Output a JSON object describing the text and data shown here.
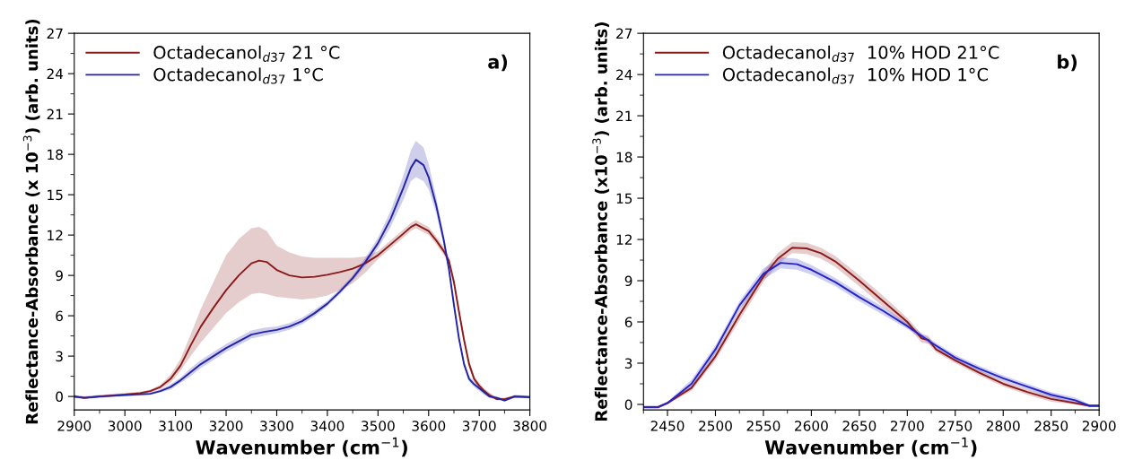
{
  "chart_data": [
    {
      "type": "line",
      "xlabel": "Wavenumber (cm$^{−1}$)",
      "ylabel": "Reflectance-Absorbance (x 10$^{−3}$) (arb. units)",
      "annotations": [
        "a)"
      ],
      "legend": "top left",
      "grid": false,
      "xlim": [
        2900,
        3800
      ],
      "ylim": [
        -1,
        27
      ],
      "xticks": [
        2900,
        {
          "value": 2950,
          "label": null
        },
        3000,
        {
          "value": 3050,
          "label": null
        },
        3100,
        {
          "value": 3150,
          "label": null
        },
        3200,
        {
          "value": 3250,
          "label": null
        },
        3300,
        {
          "value": 3350,
          "label": null
        },
        3400,
        {
          "value": 3450,
          "label": null
        },
        3500,
        {
          "value": 3550,
          "label": null
        },
        3600,
        {
          "value": 3650,
          "label": null
        },
        3700,
        {
          "value": 3750,
          "label": null
        },
        3800
      ],
      "yticks": [
        0,
        {
          "value": 1.5,
          "label": null
        },
        3,
        {
          "value": 4.5,
          "label": null
        },
        6,
        {
          "value": 7.5,
          "label": null
        },
        9,
        {
          "value": 10.5,
          "label": null
        },
        12,
        {
          "value": 13.5,
          "label": null
        },
        15,
        {
          "value": 16.5,
          "label": null
        },
        18,
        {
          "value": 19.5,
          "label": null
        },
        21,
        {
          "value": 22.5,
          "label": null
        },
        24,
        {
          "value": 25.5,
          "label": null
        },
        27
      ],
      "series": [
        {
          "name": "Octadecanol$_{d37}$ 21 °C",
          "color": "#8b1a1a",
          "x": [
            2900,
            2920,
            2950,
            3000,
            3030,
            3050,
            3070,
            3090,
            3110,
            3130,
            3150,
            3175,
            3200,
            3225,
            3250,
            3265,
            3280,
            3300,
            3325,
            3350,
            3375,
            3400,
            3425,
            3450,
            3475,
            3500,
            3525,
            3550,
            3565,
            3575,
            3590,
            3600,
            3615,
            3630,
            3640,
            3650,
            3660,
            3670,
            3680,
            3690,
            3700,
            3710,
            3720,
            3735,
            3750,
            3770,
            3800
          ],
          "values": [
            0,
            -0.1,
            0,
            0.15,
            0.25,
            0.4,
            0.7,
            1.3,
            2.3,
            3.8,
            5.2,
            6.6,
            7.9,
            9.0,
            9.9,
            10.1,
            10.0,
            9.4,
            9.0,
            8.85,
            8.9,
            9.05,
            9.25,
            9.5,
            9.9,
            10.5,
            11.3,
            12.1,
            12.6,
            12.8,
            12.5,
            12.3,
            11.6,
            10.8,
            10.1,
            8.5,
            6.3,
            4.2,
            2.4,
            1.3,
            0.8,
            0.4,
            0.1,
            -0.2,
            -0.2,
            0,
            -0.05
          ],
          "lower": [
            -0.1,
            -0.2,
            -0.1,
            0.05,
            0.15,
            0.3,
            0.55,
            1.0,
            1.9,
            3.0,
            4.0,
            5.1,
            6.2,
            7.0,
            7.6,
            7.7,
            7.6,
            7.4,
            7.3,
            7.2,
            7.3,
            7.5,
            7.9,
            8.4,
            9.2,
            10.2,
            11.0,
            11.8,
            12.3,
            12.5,
            12.2,
            12.0,
            11.3,
            10.5,
            9.8,
            8.2,
            6.0,
            3.9,
            2.1,
            1.1,
            0.6,
            0.2,
            -0.1,
            -0.3,
            -0.3,
            -0.1,
            -0.15
          ],
          "upper": [
            0.1,
            0,
            0.1,
            0.25,
            0.35,
            0.5,
            0.85,
            1.6,
            2.8,
            4.6,
            6.5,
            8.5,
            10.5,
            11.7,
            12.5,
            12.6,
            12.3,
            11.2,
            10.7,
            10.4,
            10.3,
            10.3,
            10.3,
            10.3,
            10.4,
            10.8,
            11.6,
            12.4,
            12.9,
            13.1,
            12.8,
            12.6,
            11.9,
            11.1,
            10.4,
            8.8,
            6.6,
            4.5,
            2.7,
            1.5,
            1.0,
            0.6,
            0.3,
            -0.1,
            -0.1,
            0.1,
            0.05
          ]
        },
        {
          "name": "Octadecanol$_{d37}$ 1°C",
          "color": "#2323a8",
          "x": [
            2900,
            2920,
            2950,
            3000,
            3050,
            3070,
            3090,
            3110,
            3130,
            3150,
            3175,
            3200,
            3225,
            3250,
            3275,
            3300,
            3325,
            3350,
            3375,
            3400,
            3425,
            3450,
            3475,
            3500,
            3525,
            3550,
            3565,
            3575,
            3590,
            3600,
            3615,
            3630,
            3640,
            3650,
            3660,
            3670,
            3680,
            3690,
            3700,
            3710,
            3720,
            3735,
            3750,
            3770,
            3800
          ],
          "values": [
            0,
            -0.1,
            0,
            0.1,
            0.2,
            0.4,
            0.7,
            1.2,
            1.8,
            2.4,
            3.0,
            3.6,
            4.1,
            4.6,
            4.8,
            4.95,
            5.2,
            5.6,
            6.2,
            6.9,
            7.8,
            8.8,
            10.0,
            11.4,
            13.2,
            15.5,
            17.0,
            17.6,
            17.2,
            16.3,
            14.2,
            11.6,
            9.5,
            6.8,
            4.3,
            2.4,
            1.3,
            0.9,
            0.6,
            0.3,
            0.0,
            -0.1,
            -0.3,
            0,
            -0.05
          ],
          "lower": [
            -0.1,
            -0.2,
            -0.1,
            0,
            0.1,
            0.3,
            0.5,
            1.0,
            1.5,
            2.1,
            2.7,
            3.3,
            3.8,
            4.3,
            4.5,
            4.7,
            4.95,
            5.35,
            5.95,
            6.7,
            7.6,
            8.6,
            9.7,
            11.0,
            12.6,
            14.6,
            16.0,
            16.3,
            16.0,
            15.4,
            13.6,
            11.2,
            9.2,
            6.6,
            4.1,
            2.2,
            1.1,
            0.7,
            0.4,
            0.1,
            -0.1,
            -0.2,
            -0.4,
            -0.1,
            -0.15
          ],
          "upper": [
            0.1,
            0,
            0.1,
            0.2,
            0.3,
            0.5,
            0.9,
            1.4,
            2.1,
            2.7,
            3.3,
            3.9,
            4.4,
            4.9,
            5.1,
            5.2,
            5.45,
            5.85,
            6.45,
            7.1,
            8.0,
            9.0,
            10.3,
            11.8,
            13.8,
            16.4,
            18.3,
            19.0,
            18.5,
            17.3,
            14.8,
            12.0,
            9.8,
            7.0,
            4.5,
            2.6,
            1.5,
            1.1,
            0.8,
            0.5,
            0.1,
            0,
            -0.2,
            0.1,
            0.05
          ]
        }
      ]
    },
    {
      "type": "line",
      "xlabel": "Wavenumber (cm$^{−1}$)",
      "ylabel": "Reflectance-Absorbance (x10$^{−3}$) (arb. units)",
      "annotations": [
        "b)"
      ],
      "legend": "top left",
      "grid": false,
      "xlim": [
        2425,
        2900
      ],
      "ylim": [
        -0.4,
        27
      ],
      "xticks": [
        {
          "value": 2425,
          "label": null
        },
        2450,
        {
          "value": 2475,
          "label": null
        },
        2500,
        {
          "value": 2525,
          "label": null
        },
        2550,
        {
          "value": 2575,
          "label": null
        },
        2600,
        {
          "value": 2625,
          "label": null
        },
        2650,
        {
          "value": 2675,
          "label": null
        },
        2700,
        {
          "value": 2725,
          "label": null
        },
        2750,
        {
          "value": 2775,
          "label": null
        },
        2800,
        {
          "value": 2825,
          "label": null
        },
        2850,
        {
          "value": 2875,
          "label": null
        },
        2900
      ],
      "yticks": [
        0,
        {
          "value": 1.5,
          "label": null
        },
        3,
        {
          "value": 4.5,
          "label": null
        },
        6,
        {
          "value": 7.5,
          "label": null
        },
        9,
        {
          "value": 10.5,
          "label": null
        },
        12,
        {
          "value": 13.5,
          "label": null
        },
        15,
        {
          "value": 16.5,
          "label": null
        },
        18,
        {
          "value": 19.5,
          "label": null
        },
        21,
        {
          "value": 22.5,
          "label": null
        },
        24,
        {
          "value": 25.5,
          "label": null
        },
        27
      ],
      "series": [
        {
          "name": "Octadecanol$_{d37}$  10% HOD 21°C",
          "color": "#8b1a1a",
          "x": [
            2425,
            2440,
            2450,
            2475,
            2500,
            2525,
            2550,
            2565,
            2580,
            2595,
            2610,
            2625,
            2650,
            2675,
            2700,
            2715,
            2722,
            2730,
            2750,
            2775,
            2800,
            2825,
            2850,
            2875,
            2890,
            2900
          ],
          "values": [
            -0.2,
            -0.2,
            0.1,
            1.2,
            3.5,
            6.5,
            9.3,
            10.6,
            11.4,
            11.35,
            11.0,
            10.4,
            9.0,
            7.5,
            6.0,
            4.8,
            4.7,
            4.0,
            3.2,
            2.3,
            1.5,
            0.9,
            0.4,
            0.1,
            -0.1,
            -0.1
          ],
          "lower": [
            -0.3,
            -0.3,
            0,
            1.0,
            3.2,
            6.1,
            8.9,
            10.2,
            11.0,
            10.95,
            10.6,
            10.0,
            8.6,
            7.1,
            5.7,
            4.5,
            4.4,
            3.8,
            3.0,
            2.1,
            1.3,
            0.7,
            0.2,
            0,
            -0.2,
            -0.2
          ],
          "upper": [
            -0.1,
            -0.1,
            0.2,
            1.4,
            3.8,
            6.9,
            9.7,
            11.0,
            11.8,
            11.75,
            11.4,
            10.8,
            9.4,
            7.9,
            6.3,
            5.1,
            5.0,
            4.2,
            3.4,
            2.5,
            1.7,
            1.1,
            0.6,
            0.2,
            0,
            0
          ]
        },
        {
          "name": "Octadecanol$_{d37}$  10% HOD 1°C",
          "color": "#2323c8",
          "x": [
            2425,
            2440,
            2450,
            2475,
            2500,
            2525,
            2550,
            2568,
            2585,
            2600,
            2625,
            2650,
            2675,
            2700,
            2725,
            2750,
            2775,
            2800,
            2825,
            2850,
            2875,
            2890,
            2900
          ],
          "values": [
            -0.2,
            -0.2,
            0.1,
            1.5,
            4.0,
            7.2,
            9.5,
            10.3,
            10.2,
            9.8,
            8.9,
            7.8,
            6.8,
            5.7,
            4.5,
            3.4,
            2.6,
            1.9,
            1.3,
            0.7,
            0.3,
            -0.1,
            -0.1
          ],
          "lower": [
            -0.3,
            -0.3,
            0,
            1.2,
            3.7,
            6.9,
            9.1,
            9.9,
            9.8,
            9.45,
            8.6,
            7.5,
            6.5,
            5.5,
            4.3,
            3.2,
            2.4,
            1.7,
            1.1,
            0.5,
            0.1,
            -0.2,
            -0.2
          ],
          "upper": [
            -0.1,
            -0.1,
            0.2,
            1.8,
            4.3,
            7.5,
            9.9,
            10.7,
            10.6,
            10.15,
            9.2,
            8.1,
            7.1,
            5.9,
            4.7,
            3.6,
            2.8,
            2.1,
            1.5,
            0.9,
            0.5,
            0,
            0
          ]
        }
      ]
    }
  ]
}
